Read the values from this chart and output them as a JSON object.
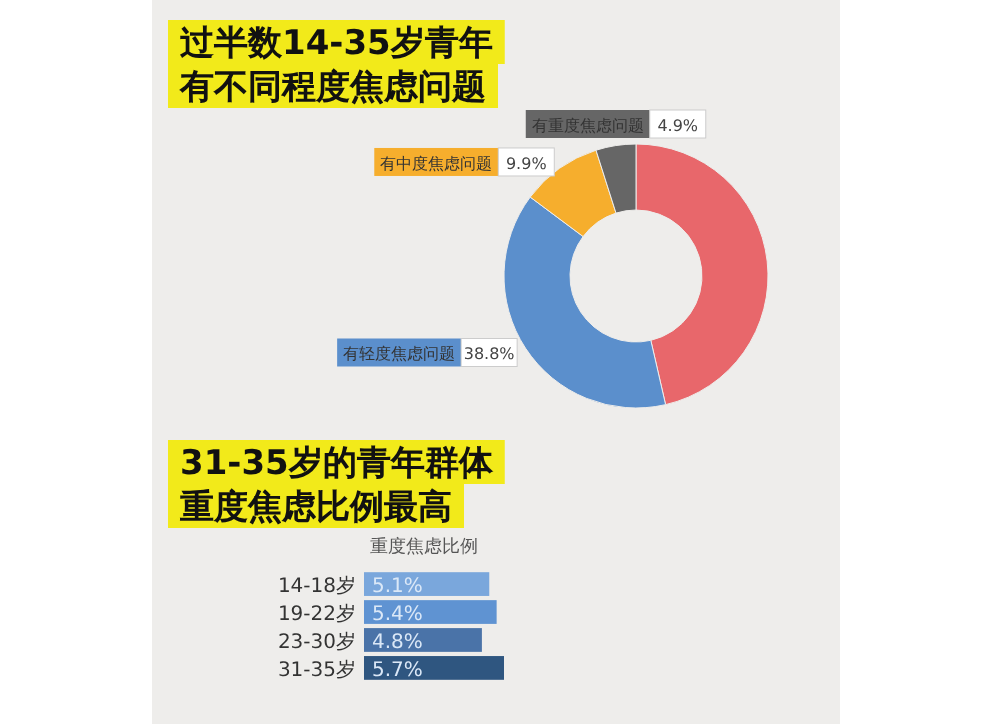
{
  "chart_data": [
    {
      "type": "donut",
      "title": "过半数14-35岁青年有不同程度焦虑问题",
      "categories": [
        null,
        "有轻度焦虑问题",
        "有中度焦虑问题",
        "有重度焦虑问题"
      ],
      "values": [
        46.4,
        38.8,
        9.9,
        4.9
      ],
      "value_labels": [
        null,
        "38.8%",
        "9.9%",
        "4.9%"
      ],
      "colors": [
        "#e8676b",
        "#5b8fcc",
        "#f6ae2d",
        "#666666"
      ]
    },
    {
      "type": "bar",
      "orientation": "horizontal",
      "title": "31-35岁的青年群体重度焦虑比例最高",
      "subtitle": "重度焦虑比例",
      "categories": [
        "14-18岁",
        "19-22岁",
        "23-30岁",
        "31-35岁"
      ],
      "values": [
        5.1,
        5.4,
        4.8,
        5.7
      ],
      "value_labels": [
        "5.1%",
        "5.4%",
        "4.8%",
        "5.7%"
      ],
      "colors": [
        "#7aa7dc",
        "#5f93d2",
        "#4a73a8",
        "#2f5680"
      ]
    }
  ]
}
